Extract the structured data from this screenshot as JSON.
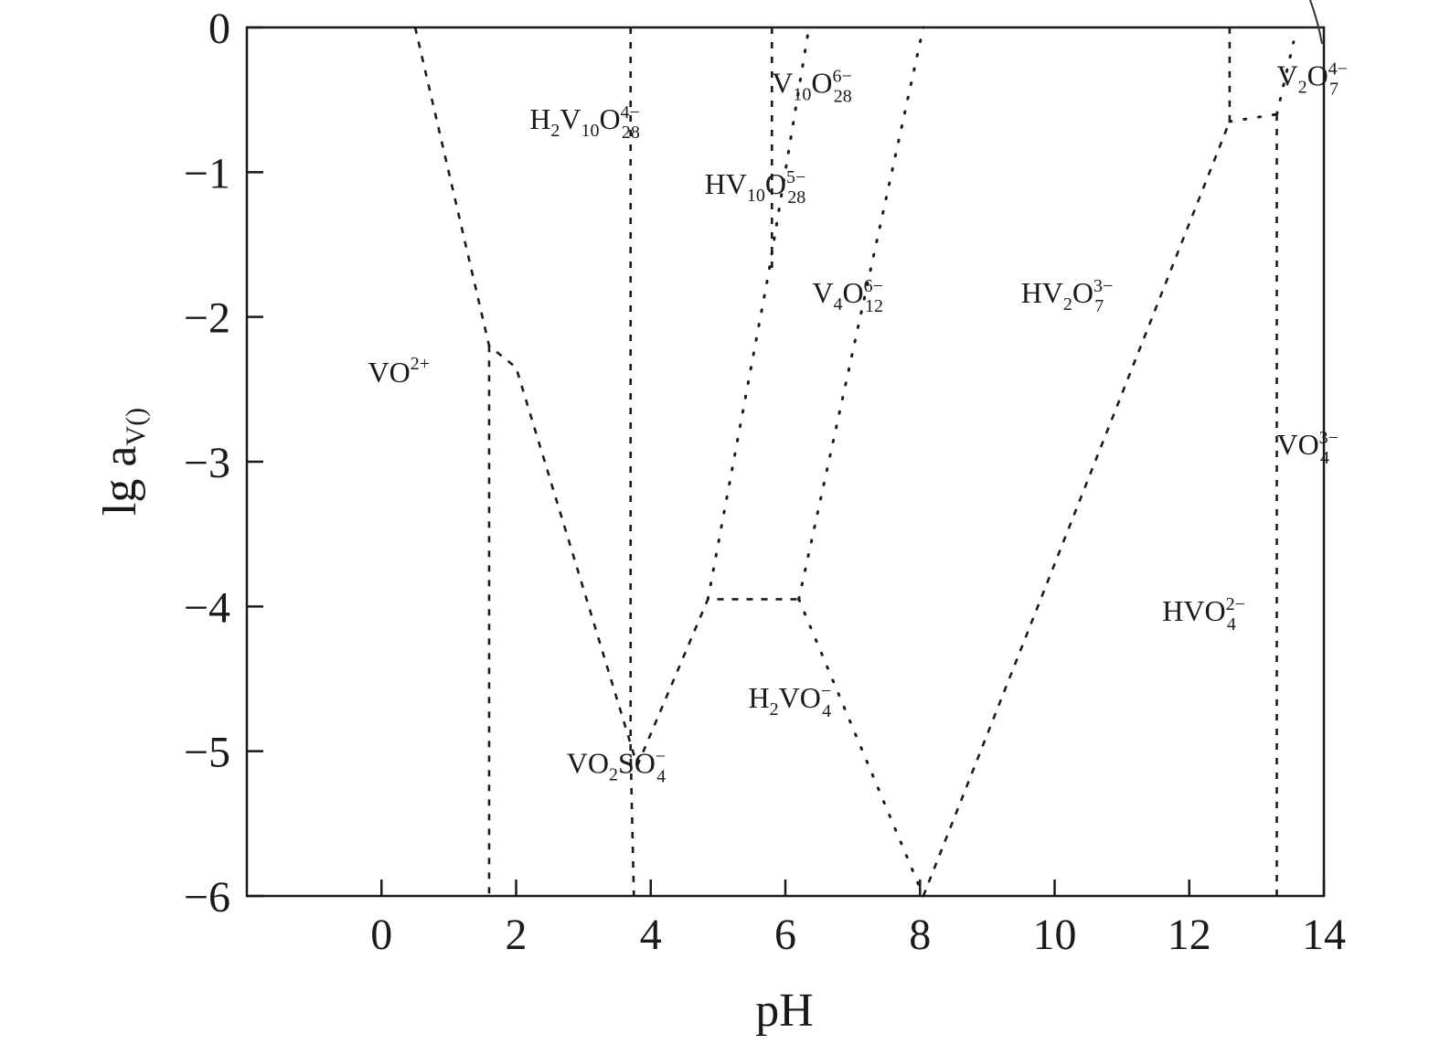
{
  "chart_data": {
    "type": "line",
    "title": "",
    "xlabel": "pH",
    "ylabel": {
      "main": "lg a",
      "sub": "V()"
    },
    "xlim": [
      -2,
      14
    ],
    "ylim": [
      -6,
      0
    ],
    "x_ticks": [
      0,
      2,
      4,
      6,
      8,
      10,
      12,
      14
    ],
    "x_tick_labels": [
      "0",
      "2",
      "4",
      "6",
      "8",
      "10",
      "12",
      "14"
    ],
    "y_ticks": [
      0,
      -1,
      -2,
      -3,
      -4,
      -5,
      -6
    ],
    "y_tick_labels": [
      "0",
      "−1",
      "−2",
      "−3",
      "−4",
      "−5",
      "−6"
    ],
    "grid": false,
    "legend": "none",
    "series": [
      {
        "style": "dashed",
        "points": [
          [
            0.5,
            0
          ],
          [
            1.6,
            -2.2
          ],
          [
            2.0,
            -2.35
          ],
          [
            3.8,
            -5.1
          ]
        ]
      },
      {
        "style": "dashed",
        "points": [
          [
            1.6,
            -2.2
          ],
          [
            1.6,
            -6
          ]
        ]
      },
      {
        "style": "dashed",
        "points": [
          [
            3.7,
            0
          ],
          [
            3.7,
            -5.0
          ],
          [
            3.75,
            -6
          ]
        ]
      },
      {
        "style": "dashed",
        "points": [
          [
            3.8,
            -5.1
          ],
          [
            4.85,
            -3.95
          ],
          [
            6.2,
            -3.95
          ]
        ]
      },
      {
        "style": "dotted",
        "points": [
          [
            4.85,
            -3.95
          ],
          [
            5.75,
            -1.7
          ],
          [
            6.35,
            0
          ]
        ]
      },
      {
        "style": "dashed",
        "points": [
          [
            5.8,
            0
          ],
          [
            5.8,
            -1.7
          ]
        ]
      },
      {
        "style": "dotted",
        "points": [
          [
            6.2,
            -3.95
          ],
          [
            8.05,
            0
          ]
        ]
      },
      {
        "style": "dotted",
        "points": [
          [
            6.2,
            -3.95
          ],
          [
            8.05,
            -6
          ]
        ]
      },
      {
        "style": "dashed",
        "points": [
          [
            8.05,
            -6
          ],
          [
            12.6,
            -0.65
          ]
        ]
      },
      {
        "style": "dashed",
        "points": [
          [
            12.6,
            -0.65
          ],
          [
            12.6,
            0
          ]
        ]
      },
      {
        "style": "dotted",
        "points": [
          [
            12.6,
            -0.65
          ],
          [
            13.3,
            -0.6
          ]
        ]
      },
      {
        "style": "dashed",
        "points": [
          [
            13.3,
            -0.6
          ],
          [
            13.3,
            -6
          ]
        ]
      },
      {
        "style": "dotted",
        "points": [
          [
            13.3,
            -0.6
          ],
          [
            13.55,
            -0.1
          ]
        ]
      }
    ],
    "annotations": [
      {
        "text": "VO",
        "sup": "2+",
        "x": -0.2,
        "y": -2.45
      },
      {
        "text": "H",
        "sub1": "2",
        "mid": "V",
        "sub2": "10",
        "end": "O",
        "sub": "28",
        "sup": "4−",
        "x": 2.2,
        "y": -0.7
      },
      {
        "text": "HV",
        "sub1": "10",
        "end": "O",
        "sub": "28",
        "sup": "5−",
        "x": 4.8,
        "y": -1.15
      },
      {
        "text": "V",
        "sub1": "10",
        "end": "O",
        "sub": "28",
        "sup": "6−",
        "x": 5.8,
        "y": -0.45
      },
      {
        "text": "V",
        "sub1": "4",
        "end": "O",
        "sub": "12",
        "sup": "6−",
        "x": 6.4,
        "y": -1.9
      },
      {
        "text": "HV",
        "sub1": "2",
        "end": "O",
        "sub": "7",
        "sup": "3−",
        "x": 9.5,
        "y": -1.9
      },
      {
        "text": "V",
        "sub1": "2",
        "end": "O",
        "sub": "7",
        "sup": "4−",
        "x": 13.3,
        "y": -0.4
      },
      {
        "text": "VO",
        "end": "",
        "sub": "4",
        "sup": "3−",
        "x": 13.3,
        "y": -2.95
      },
      {
        "text": "HVO",
        "end": "",
        "sub": "4",
        "sup": "2−",
        "x": 11.6,
        "y": -4.1
      },
      {
        "text": "H",
        "sub1": "2",
        "end": "VO",
        "sub": "4",
        "sup": "−",
        "x": 5.45,
        "y": -4.7
      },
      {
        "text": "VO",
        "sub1": "2",
        "end": "SO",
        "sub": "4",
        "sup": "−",
        "x": 2.75,
        "y": -5.15
      }
    ]
  }
}
